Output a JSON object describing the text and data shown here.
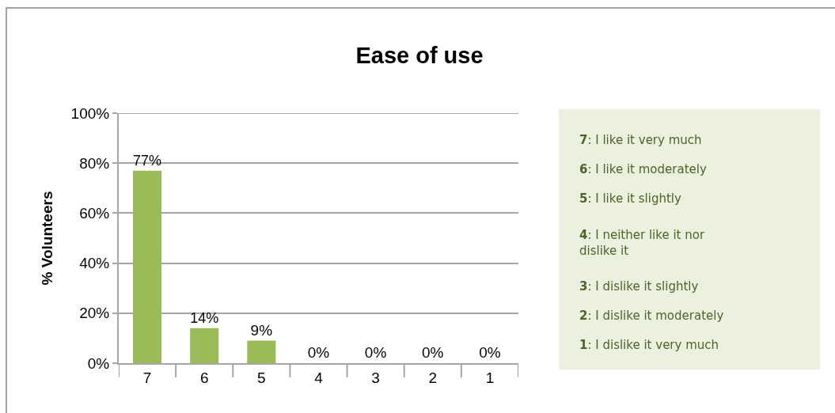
{
  "chart_data": {
    "type": "bar",
    "title": "Ease of use",
    "ylabel": "% Volunteers",
    "categories": [
      "7",
      "6",
      "5",
      "4",
      "3",
      "2",
      "1"
    ],
    "series": [
      {
        "color": "#9bbb59",
        "values": [
          77,
          14,
          9,
          0,
          0,
          0,
          0
        ]
      }
    ],
    "value_labels": [
      "77%",
      "14%",
      "9%",
      "0%",
      "0%",
      "0%",
      "0%"
    ],
    "ylim": [
      0,
      100
    ],
    "yticks": [
      {
        "value": 0,
        "label": "0%"
      },
      {
        "value": 20,
        "label": "20%"
      },
      {
        "value": 40,
        "label": "40%"
      },
      {
        "value": 60,
        "label": "60%"
      },
      {
        "value": 80,
        "label": "80%"
      },
      {
        "value": 100,
        "label": "100%"
      }
    ],
    "grid": "y",
    "annotations": [
      "7: I like it very much",
      "6: I like it moderately",
      "5: I like it slightly",
      "4: I neither like it nor dislike it",
      "3: I dislike it slightly",
      "2: I dislike it moderately",
      "1: I dislike it very much"
    ]
  }
}
